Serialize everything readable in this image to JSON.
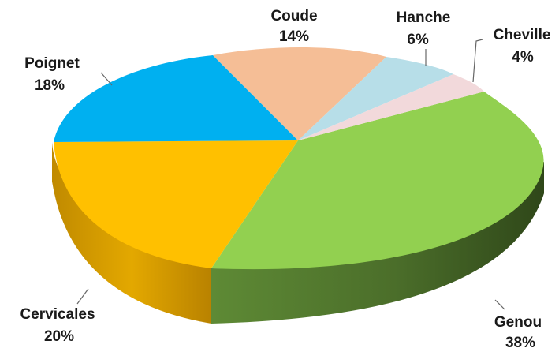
{
  "chart_data": {
    "type": "pie",
    "style": "3d-exploded-perspective",
    "title": "",
    "slices": [
      {
        "label": "Coude",
        "value": 14,
        "value_label": "14%",
        "color": "#F5BE96"
      },
      {
        "label": "Hanche",
        "value": 6,
        "value_label": "6%",
        "color": "#B7DEE8"
      },
      {
        "label": "Cheville",
        "value": 4,
        "value_label": "4%",
        "color": "#F2D9DB"
      },
      {
        "label": "Genou",
        "value": 38,
        "value_label": "38%",
        "color": "#92D050"
      },
      {
        "label": "Cervicales",
        "value": 20,
        "value_label": "20%",
        "color": "#FFC000"
      },
      {
        "label": "Poignet",
        "value": 18,
        "value_label": "18%",
        "color": "#00B0F0"
      }
    ],
    "legend": "none",
    "data_labels": "outside-with-leader-lines"
  }
}
